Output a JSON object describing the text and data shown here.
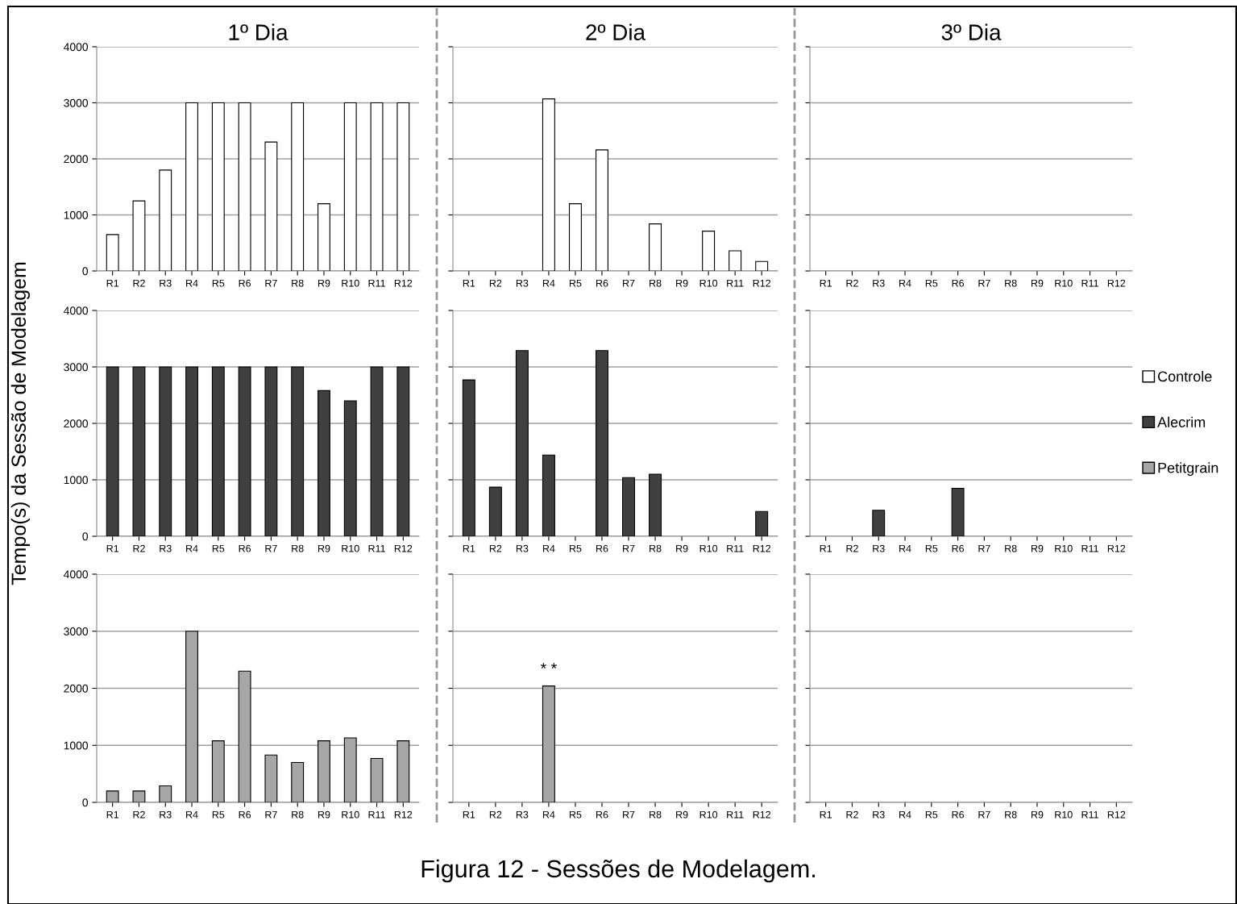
{
  "chart_data": [
    {
      "type": "bar",
      "title": "1º Dia",
      "categories": [
        "R1",
        "R2",
        "R3",
        "R4",
        "R5",
        "R6",
        "R7",
        "R8",
        "R9",
        "R10",
        "R11",
        "R12"
      ],
      "series": [
        {
          "color": "#ffffff",
          "values": [
            650,
            1250,
            1800,
            3000,
            3000,
            3000,
            2300,
            3000,
            1200,
            3000,
            3000,
            3000
          ]
        }
      ],
      "ylim": [
        0,
        4000
      ],
      "yticks": [
        0,
        1000,
        2000,
        3000,
        4000
      ],
      "grid": "y"
    },
    {
      "type": "bar",
      "title": "2º Dia",
      "categories": [
        "R1",
        "R2",
        "R3",
        "R4",
        "R5",
        "R6",
        "R7",
        "R8",
        "R9",
        "R10",
        "R11",
        "R12"
      ],
      "series": [
        {
          "color": "#ffffff",
          "values": [
            0,
            0,
            0,
            3070,
            1200,
            2160,
            0,
            840,
            0,
            710,
            360,
            170
          ]
        }
      ],
      "ylim": [
        0,
        4000
      ],
      "yticks": [
        0,
        1000,
        2000,
        3000,
        4000
      ],
      "grid": "y",
      "tick_labels": "x"
    },
    {
      "type": "bar",
      "title": "3º Dia",
      "categories": [
        "R1",
        "R2",
        "R3",
        "R4",
        "R5",
        "R6",
        "R7",
        "R8",
        "R9",
        "R10",
        "R11",
        "R12"
      ],
      "series": [
        {
          "name": "Controle",
          "color": "#ffffff",
          "values": [
            0,
            0,
            0,
            0,
            0,
            0,
            0,
            0,
            0,
            0,
            0,
            0
          ]
        }
      ],
      "ylim": [
        0,
        4000
      ],
      "yticks": [
        0,
        1000,
        2000,
        3000,
        4000
      ],
      "grid": "y",
      "tick_labels": "x",
      "legend": "right"
    },
    {
      "type": "bar",
      "ylabel": "Tempo(s) da Sessão de Modelagem",
      "categories": [
        "R1",
        "R2",
        "R3",
        "R4",
        "R5",
        "R6",
        "R7",
        "R8",
        "R9",
        "R10",
        "R11",
        "R12"
      ],
      "series": [
        {
          "color": "#404040",
          "values": [
            3000,
            3000,
            3000,
            3000,
            3000,
            3000,
            3000,
            3000,
            2580,
            2400,
            3000,
            3000
          ]
        }
      ],
      "ylim": [
        0,
        4000
      ],
      "yticks": [
        0,
        1000,
        2000,
        3000,
        4000
      ],
      "grid": "y"
    },
    {
      "type": "bar",
      "categories": [
        "R1",
        "R2",
        "R3",
        "R4",
        "R5",
        "R6",
        "R7",
        "R8",
        "R9",
        "R10",
        "R11",
        "R12"
      ],
      "series": [
        {
          "color": "#404040",
          "values": [
            2770,
            870,
            3290,
            1440,
            0,
            3290,
            1040,
            1100,
            0,
            0,
            0,
            440
          ]
        }
      ],
      "ylim": [
        0,
        4000
      ],
      "yticks": [
        0,
        1000,
        2000,
        3000,
        4000
      ],
      "grid": "y",
      "tick_labels": "x"
    },
    {
      "type": "bar",
      "categories": [
        "R1",
        "R2",
        "R3",
        "R4",
        "R5",
        "R6",
        "R7",
        "R8",
        "R9",
        "R10",
        "R11",
        "R12"
      ],
      "series": [
        {
          "name": "Alecrim",
          "color": "#404040",
          "values": [
            0,
            0,
            460,
            0,
            0,
            850,
            0,
            0,
            0,
            0,
            0,
            0
          ]
        }
      ],
      "ylim": [
        0,
        4000
      ],
      "yticks": [
        0,
        1000,
        2000,
        3000,
        4000
      ],
      "grid": "y",
      "tick_labels": "x",
      "legend": "right"
    },
    {
      "type": "bar",
      "categories": [
        "R1",
        "R2",
        "R3",
        "R4",
        "R5",
        "R6",
        "R7",
        "R8",
        "R9",
        "R10",
        "R11",
        "R12"
      ],
      "series": [
        {
          "color": "#a6a6a6",
          "values": [
            200,
            200,
            290,
            3000,
            1080,
            2300,
            830,
            700,
            1080,
            1130,
            770,
            1080
          ]
        }
      ],
      "ylim": [
        0,
        4000
      ],
      "yticks": [
        0,
        1000,
        2000,
        3000,
        4000
      ],
      "grid": "y"
    },
    {
      "type": "bar",
      "categories": [
        "R1",
        "R2",
        "R3",
        "R4",
        "R5",
        "R6",
        "R7",
        "R8",
        "R9",
        "R10",
        "R11",
        "R12"
      ],
      "series": [
        {
          "color": "#a6a6a6",
          "values": [
            0,
            0,
            0,
            2040,
            0,
            0,
            0,
            0,
            0,
            0,
            0,
            0
          ]
        }
      ],
      "ylim": [
        0,
        4000
      ],
      "yticks": [
        0,
        1000,
        2000,
        3000,
        4000
      ],
      "grid": "y",
      "tick_labels": "x",
      "annotations": [
        {
          "text": "* *",
          "x": "R4",
          "y": 2040
        }
      ]
    },
    {
      "type": "bar",
      "categories": [
        "R1",
        "R2",
        "R3",
        "R4",
        "R5",
        "R6",
        "R7",
        "R8",
        "R9",
        "R10",
        "R11",
        "R12"
      ],
      "series": [
        {
          "name": "Petitgrain",
          "color": "#a6a6a6",
          "values": [
            0,
            0,
            0,
            0,
            0,
            0,
            0,
            0,
            0,
            0,
            0,
            0
          ]
        }
      ],
      "ylim": [
        0,
        4000
      ],
      "yticks": [
        0,
        1000,
        2000,
        3000,
        4000
      ],
      "grid": "y",
      "tick_labels": "x",
      "legend": "right",
      "annotations": [
        "Figura 12 - Sessões de Modelagem."
      ]
    }
  ]
}
